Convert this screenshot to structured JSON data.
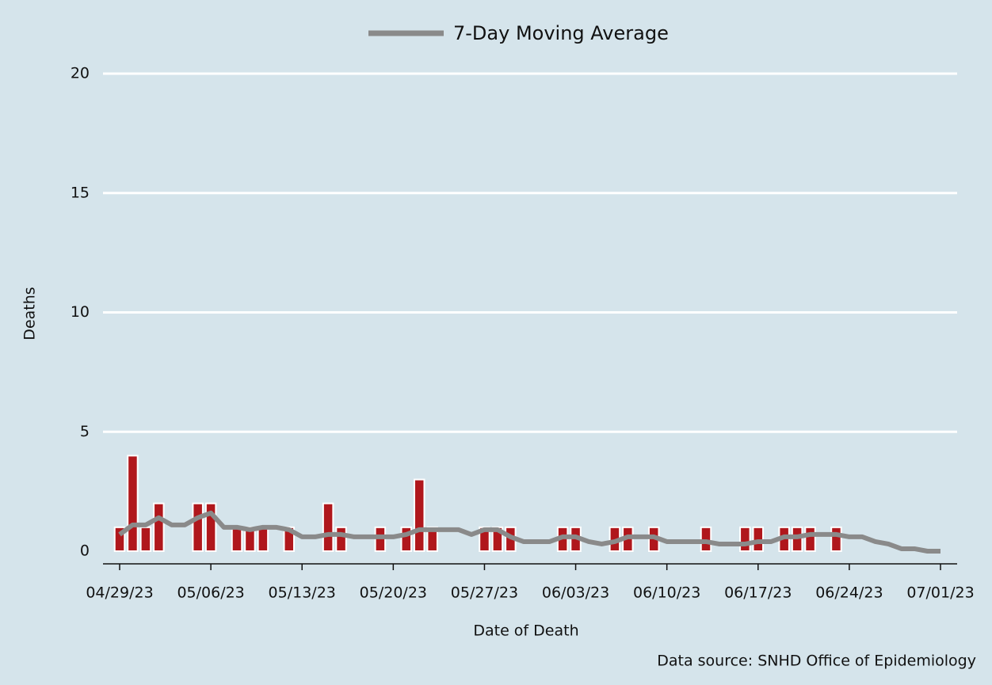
{
  "chart_data": {
    "type": "bar",
    "ylabel": "Deaths",
    "xlabel": "Date of Death",
    "source": "Data source: SNHD Office of Epidemiology",
    "categories": [
      "04/29/23",
      null,
      null,
      null,
      null,
      null,
      null,
      "05/06/23",
      null,
      null,
      null,
      null,
      null,
      null,
      "05/13/23",
      null,
      null,
      null,
      null,
      null,
      null,
      "05/20/23",
      null,
      null,
      null,
      null,
      null,
      null,
      "05/27/23",
      null,
      null,
      null,
      null,
      null,
      null,
      "06/03/23",
      null,
      null,
      null,
      null,
      null,
      null,
      "06/10/23",
      null,
      null,
      null,
      null,
      null,
      null,
      "06/17/23",
      null,
      null,
      null,
      null,
      null,
      null,
      "06/24/23",
      null,
      null,
      null,
      null,
      null,
      null,
      "07/01/23"
    ],
    "series": [
      {
        "type": "bar",
        "color": "#b0171c",
        "values": [
          1,
          4,
          1,
          2,
          0,
          0,
          2,
          2,
          0,
          1,
          1,
          1,
          0,
          1,
          0,
          0,
          2,
          1,
          0,
          0,
          1,
          0,
          1,
          3,
          1,
          0,
          0,
          0,
          1,
          1,
          1,
          0,
          0,
          0,
          1,
          1,
          0,
          0,
          1,
          1,
          0,
          1,
          0,
          0,
          0,
          1,
          0,
          0,
          1,
          1,
          0,
          1,
          1,
          1,
          0,
          1,
          0,
          0,
          0,
          0,
          0,
          0,
          0,
          0
        ]
      },
      {
        "type": "line",
        "name": "7-Day Moving Average",
        "color": "#8a8a8a",
        "values": [
          0.7,
          1.1,
          1.1,
          1.4,
          1.1,
          1.1,
          1.4,
          1.6,
          1.0,
          1.0,
          0.9,
          1.0,
          1.0,
          0.9,
          0.6,
          0.6,
          0.7,
          0.7,
          0.6,
          0.6,
          0.6,
          0.6,
          0.7,
          0.9,
          0.9,
          0.9,
          0.9,
          0.7,
          0.9,
          0.9,
          0.6,
          0.4,
          0.4,
          0.4,
          0.6,
          0.6,
          0.4,
          0.3,
          0.4,
          0.6,
          0.6,
          0.6,
          0.4,
          0.4,
          0.4,
          0.4,
          0.3,
          0.3,
          0.3,
          0.4,
          0.4,
          0.6,
          0.6,
          0.7,
          0.7,
          0.7,
          0.6,
          0.6,
          0.4,
          0.3,
          0.1,
          0.1,
          0,
          0
        ]
      }
    ],
    "ylim": [
      0,
      20
    ],
    "yticks": [
      0,
      5,
      10,
      15,
      20
    ],
    "grid": true,
    "legend": "top"
  }
}
